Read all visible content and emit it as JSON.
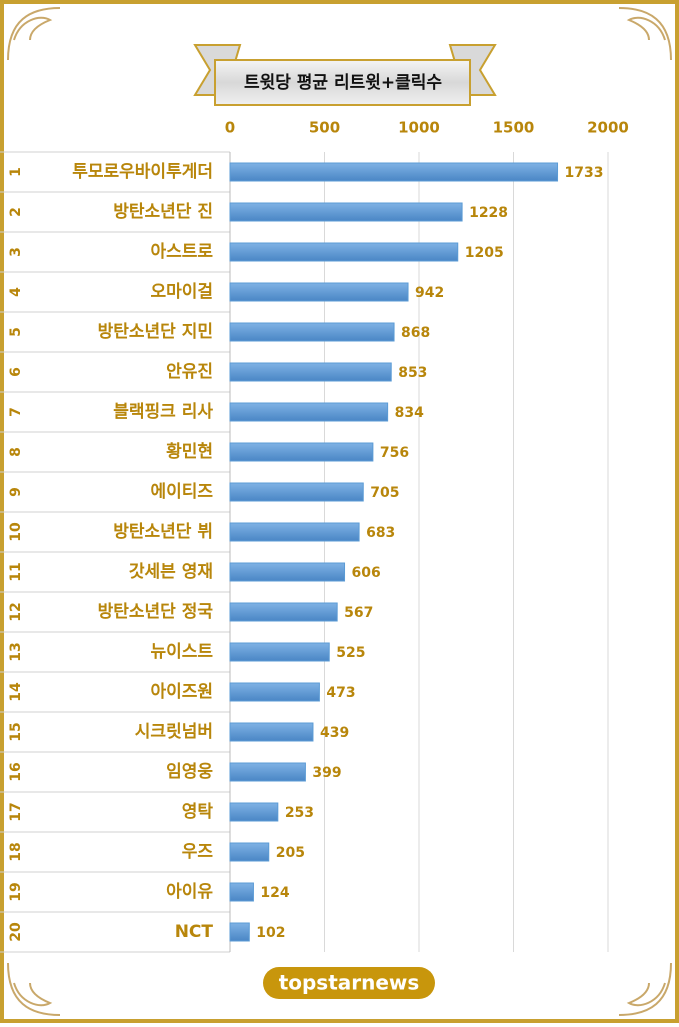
{
  "chart_data": {
    "type": "bar",
    "orientation": "horizontal",
    "title": "트윗당 평균 리트윗+클릭수",
    "ranks": [
      1,
      2,
      3,
      4,
      5,
      6,
      7,
      8,
      9,
      10,
      11,
      12,
      13,
      14,
      15,
      16,
      17,
      18,
      19,
      20
    ],
    "categories": [
      "투모로우바이투게더",
      "방탄소년단 진",
      "아스트로",
      "오마이걸",
      "방탄소년단 지민",
      "안유진",
      "블랙핑크 리사",
      "황민현",
      "에이티즈",
      "방탄소년단 뷔",
      "갓세븐 영재",
      "방탄소년단 정국",
      "뉴이스트",
      "아이즈원",
      "시크릿넘버",
      "임영웅",
      "영탁",
      "우즈",
      "아이유",
      "NCT"
    ],
    "values": [
      1733,
      1228,
      1205,
      942,
      868,
      853,
      834,
      756,
      705,
      683,
      606,
      567,
      525,
      473,
      439,
      399,
      253,
      205,
      124,
      102
    ],
    "color": "#5b9bd5",
    "xlim": [
      0,
      2000
    ],
    "xticks": [
      0,
      500,
      1000,
      1500,
      2000
    ],
    "grid": true
  },
  "logo": "topstarnews"
}
